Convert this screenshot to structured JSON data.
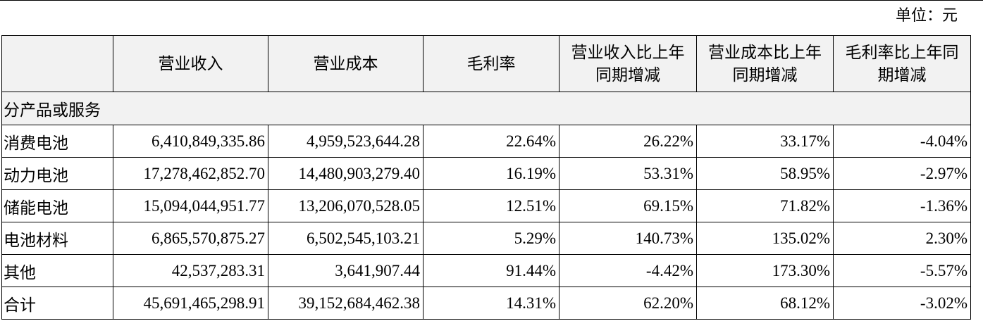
{
  "unit": "单位：元",
  "table": {
    "columns": [
      "",
      "营业收入",
      "营业成本",
      "毛利率",
      "营业收入比上年同期增减",
      "营业成本比上年同期增减",
      "毛利率比上年同期增减"
    ],
    "section": "分产品或服务",
    "rows": [
      [
        "消费电池",
        "6,410,849,335.86",
        "4,959,523,644.28",
        "22.64%",
        "26.22%",
        "33.17%",
        "-4.04%"
      ],
      [
        "动力电池",
        "17,278,462,852.70",
        "14,480,903,279.40",
        "16.19%",
        "53.31%",
        "58.95%",
        "-2.97%"
      ],
      [
        "储能电池",
        "15,094,044,951.77",
        "13,206,070,528.05",
        "12.51%",
        "69.15%",
        "71.82%",
        "-1.36%"
      ],
      [
        "电池材料",
        "6,865,570,875.27",
        "6,502,545,103.21",
        "5.29%",
        "140.73%",
        "135.02%",
        "2.30%"
      ],
      [
        "其他",
        "42,537,283.31",
        "3,641,907.44",
        "91.44%",
        "-4.42%",
        "173.30%",
        "-5.57%"
      ],
      [
        "合计",
        "45,691,465,298.91",
        "39,152,684,462.38",
        "14.31%",
        "62.20%",
        "68.12%",
        "-3.02%"
      ]
    ]
  }
}
